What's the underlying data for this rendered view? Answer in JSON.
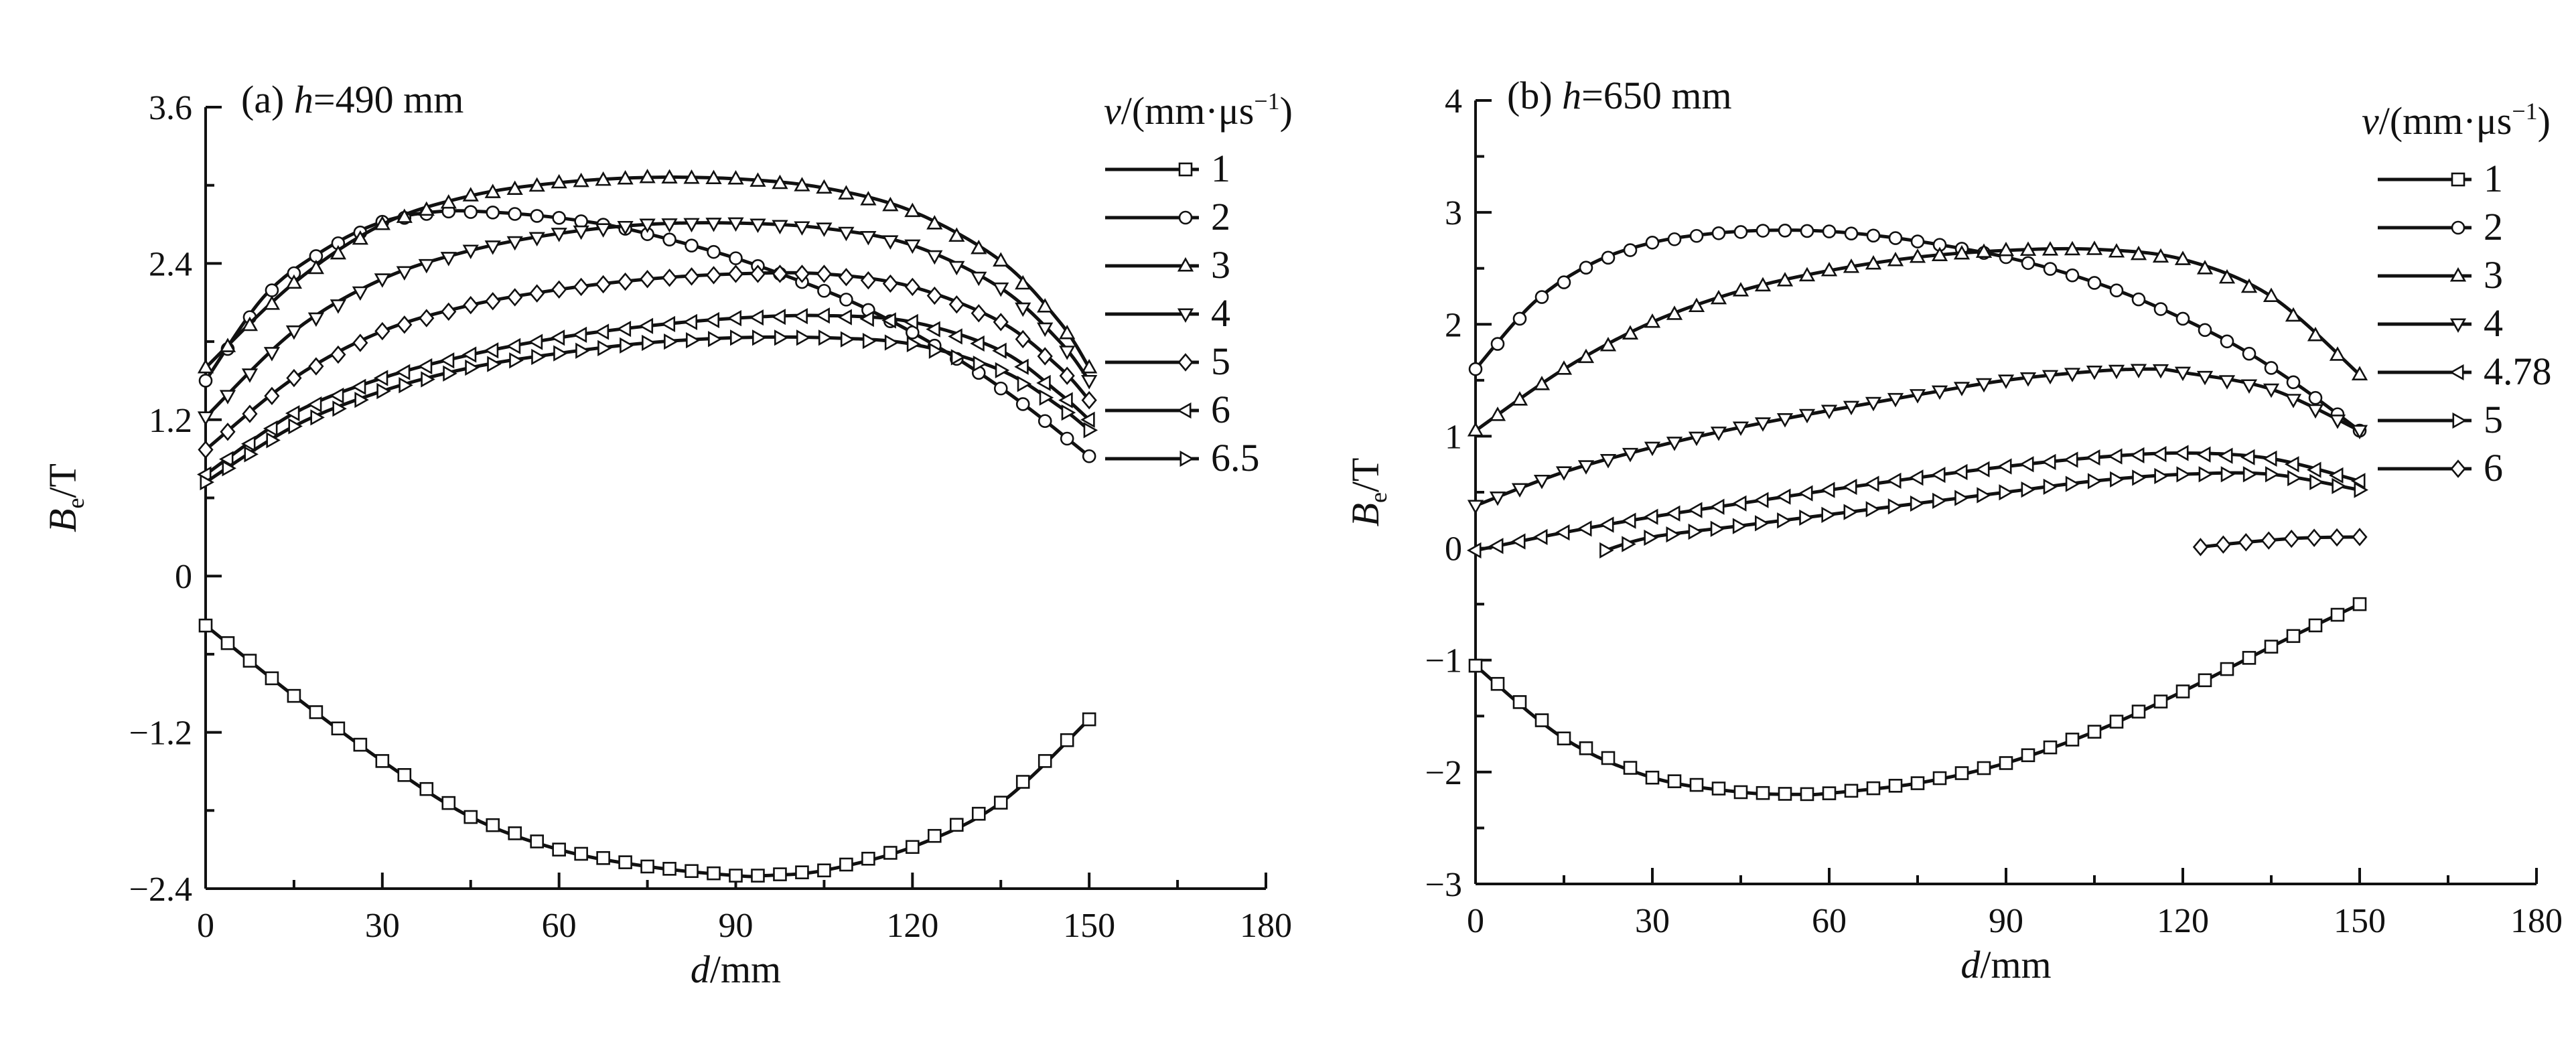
{
  "chart_data": [
    {
      "type": "line",
      "title": "(a) h=490 mm",
      "title_parts": {
        "prefix": "(a) ",
        "var": "h",
        "suffix": "=490 mm"
      },
      "xlabel": "d/mm",
      "xlabel_parts": {
        "var": "d",
        "unit": "/mm"
      },
      "ylabel": "Be/T",
      "ylabel_parts": {
        "var": "B",
        "sub": "e",
        "unit": "/T"
      },
      "legend_title": "v/(mm·μs⁻¹)",
      "legend_title_parts": {
        "var": "v",
        "rest": "/(mm·μs",
        "sup": "−1",
        "close": ")"
      },
      "legend_position": "right",
      "xlim": [
        0,
        180
      ],
      "ylim": [
        -2.4,
        3.6
      ],
      "xticks": [
        "0",
        "30",
        "60",
        "90",
        "120",
        "150",
        "180"
      ],
      "yticks": [
        "−2.4",
        "−1.2",
        "0",
        "1.2",
        "2.4",
        "3.6"
      ],
      "series": [
        {
          "name": "1",
          "marker": "square",
          "x": [
            0,
            15,
            30,
            45,
            60,
            75,
            90,
            95,
            105,
            120,
            135,
            150
          ],
          "y": [
            -0.38,
            -0.92,
            -1.42,
            -1.85,
            -2.1,
            -2.23,
            -2.3,
            -2.3,
            -2.26,
            -2.08,
            -1.74,
            -1.1
          ]
        },
        {
          "name": "2",
          "marker": "circle",
          "x": [
            0,
            10,
            20,
            30,
            40,
            50,
            60,
            70,
            80,
            90,
            100,
            110,
            120,
            130,
            140,
            150
          ],
          "y": [
            1.5,
            2.15,
            2.5,
            2.72,
            2.8,
            2.79,
            2.75,
            2.68,
            2.57,
            2.44,
            2.28,
            2.1,
            1.87,
            1.6,
            1.28,
            0.92
          ]
        },
        {
          "name": "3",
          "marker": "triangle-up",
          "x": [
            0,
            15,
            30,
            45,
            60,
            75,
            90,
            105,
            120,
            135,
            145,
            150
          ],
          "y": [
            1.6,
            2.25,
            2.7,
            2.92,
            3.02,
            3.06,
            3.05,
            2.98,
            2.8,
            2.42,
            1.95,
            1.6
          ]
        },
        {
          "name": "4",
          "marker": "triangle-down",
          "x": [
            0,
            15,
            30,
            45,
            60,
            75,
            90,
            105,
            120,
            135,
            145,
            150
          ],
          "y": [
            1.22,
            1.88,
            2.28,
            2.5,
            2.63,
            2.7,
            2.71,
            2.67,
            2.54,
            2.21,
            1.8,
            1.5
          ]
        },
        {
          "name": "5",
          "marker": "diamond",
          "x": [
            0,
            15,
            30,
            45,
            60,
            75,
            90,
            105,
            120,
            135,
            145,
            150
          ],
          "y": [
            0.97,
            1.52,
            1.88,
            2.08,
            2.2,
            2.28,
            2.32,
            2.32,
            2.22,
            1.95,
            1.6,
            1.35
          ]
        },
        {
          "name": "6",
          "marker": "triangle-left",
          "x": [
            0,
            15,
            30,
            45,
            60,
            75,
            90,
            105,
            120,
            135,
            145,
            150
          ],
          "y": [
            0.78,
            1.25,
            1.52,
            1.7,
            1.83,
            1.92,
            1.98,
            2.0,
            1.95,
            1.73,
            1.4,
            1.2
          ]
        },
        {
          "name": "6.5",
          "marker": "triangle-right",
          "x": [
            0,
            15,
            30,
            45,
            60,
            75,
            90,
            105,
            120,
            135,
            145,
            150
          ],
          "y": [
            0.72,
            1.15,
            1.42,
            1.6,
            1.71,
            1.79,
            1.83,
            1.83,
            1.78,
            1.58,
            1.3,
            1.12
          ]
        }
      ]
    },
    {
      "type": "line",
      "title": "(b) h=650 mm",
      "title_parts": {
        "prefix": "(b) ",
        "var": "h",
        "suffix": "=650 mm"
      },
      "xlabel": "d/mm",
      "xlabel_parts": {
        "var": "d",
        "unit": "/mm"
      },
      "ylabel": "Be/T",
      "ylabel_parts": {
        "var": "B",
        "sub": "e",
        "unit": "/T"
      },
      "legend_title": "v/(mm·μs⁻¹)",
      "legend_title_parts": {
        "var": "v",
        "rest": "/(mm·μs",
        "sup": "−1",
        "close": ")"
      },
      "legend_position": "right",
      "xlim": [
        0,
        180
      ],
      "ylim": [
        -3,
        4
      ],
      "xticks": [
        "0",
        "30",
        "60",
        "90",
        "120",
        "150",
        "180"
      ],
      "yticks": [
        "−3",
        "−2",
        "−1",
        "0",
        "1",
        "2",
        "3",
        "4"
      ],
      "series": [
        {
          "name": "1",
          "marker": "square",
          "x": [
            0,
            15,
            30,
            45,
            55,
            60,
            75,
            90,
            105,
            120,
            135,
            150
          ],
          "y": [
            -1.05,
            -1.7,
            -2.05,
            -2.18,
            -2.2,
            -2.19,
            -2.1,
            -1.92,
            -1.64,
            -1.28,
            -0.88,
            -0.5
          ]
        },
        {
          "name": "2",
          "marker": "circle",
          "x": [
            0,
            10,
            20,
            30,
            40,
            50,
            60,
            70,
            80,
            90,
            100,
            110,
            120,
            130,
            140,
            150
          ],
          "y": [
            1.6,
            2.2,
            2.55,
            2.73,
            2.81,
            2.84,
            2.83,
            2.78,
            2.7,
            2.6,
            2.46,
            2.28,
            2.05,
            1.78,
            1.44,
            1.05
          ]
        },
        {
          "name": "3",
          "marker": "triangle-up",
          "x": [
            0,
            15,
            30,
            45,
            60,
            75,
            90,
            105,
            120,
            135,
            150
          ],
          "y": [
            1.05,
            1.6,
            2.02,
            2.3,
            2.48,
            2.6,
            2.66,
            2.67,
            2.58,
            2.25,
            1.55
          ]
        },
        {
          "name": "4",
          "marker": "triangle-down",
          "x": [
            0,
            15,
            30,
            45,
            60,
            75,
            90,
            105,
            115,
            120,
            135,
            150
          ],
          "y": [
            0.38,
            0.68,
            0.9,
            1.08,
            1.23,
            1.37,
            1.5,
            1.58,
            1.6,
            1.57,
            1.42,
            1.05
          ]
        },
        {
          "name": "4.78",
          "marker": "triangle-left",
          "x": [
            0,
            15,
            30,
            45,
            60,
            75,
            90,
            105,
            120,
            135,
            150
          ],
          "y": [
            -0.02,
            0.14,
            0.28,
            0.4,
            0.52,
            0.63,
            0.73,
            0.81,
            0.85,
            0.8,
            0.6
          ]
        },
        {
          "name": "5",
          "marker": "triangle-right",
          "x": [
            22,
            30,
            45,
            60,
            75,
            90,
            105,
            120,
            135,
            150
          ],
          "y": [
            -0.02,
            0.1,
            0.2,
            0.3,
            0.4,
            0.5,
            0.6,
            0.66,
            0.66,
            0.52
          ]
        },
        {
          "name": "6",
          "marker": "diamond",
          "x": [
            123,
            130,
            140,
            150
          ],
          "y": [
            0.01,
            0.05,
            0.09,
            0.1
          ]
        }
      ]
    }
  ]
}
